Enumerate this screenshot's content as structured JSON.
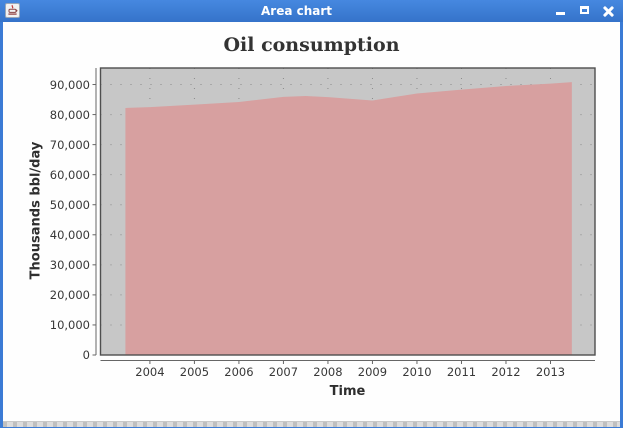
{
  "window": {
    "title": "Area chart",
    "icon": "java-coffee-icon",
    "controls": [
      "minimize",
      "maximize",
      "close"
    ]
  },
  "chart_data": {
    "type": "area",
    "title": "Oil consumption",
    "xlabel": "Time",
    "ylabel": "Thousands bbl/day",
    "legend": "none",
    "grid": "dotted",
    "xlim": [
      2002.89,
      2014.0
    ],
    "ylim": [
      0,
      95500
    ],
    "x_ticks": [
      2004,
      2005,
      2006,
      2007,
      2008,
      2009,
      2010,
      2011,
      2012,
      2013
    ],
    "y_ticks": [
      0,
      10000,
      20000,
      30000,
      40000,
      50000,
      60000,
      70000,
      80000,
      90000
    ],
    "y_tick_labels": [
      "0",
      "10,000",
      "20,000",
      "30,000",
      "40,000",
      "50,000",
      "60,000",
      "70,000",
      "80,000",
      "90,000"
    ],
    "series": [
      {
        "name": "Oil consumption",
        "points": [
          [
            2003.45,
            82200
          ],
          [
            2004.0,
            82500
          ],
          [
            2005.0,
            83300
          ],
          [
            2006.0,
            84200
          ],
          [
            2007.0,
            85900
          ],
          [
            2007.5,
            86200
          ],
          [
            2008.0,
            85800
          ],
          [
            2009.0,
            84700
          ],
          [
            2010.0,
            87000
          ],
          [
            2011.0,
            88300
          ],
          [
            2012.0,
            89500
          ],
          [
            2013.0,
            90300
          ],
          [
            2013.48,
            90800
          ]
        ]
      }
    ],
    "colors": {
      "area_fill": "#D7A0A0",
      "plot_background": "#C7C7C7",
      "plot_border": "#4F4F4F",
      "gridline": "#8A8A8A",
      "axis_line": "#666666"
    }
  },
  "frame_colors": {
    "titlebar_blue": "#3B7BD5",
    "title_text": "#FFFFFF"
  }
}
